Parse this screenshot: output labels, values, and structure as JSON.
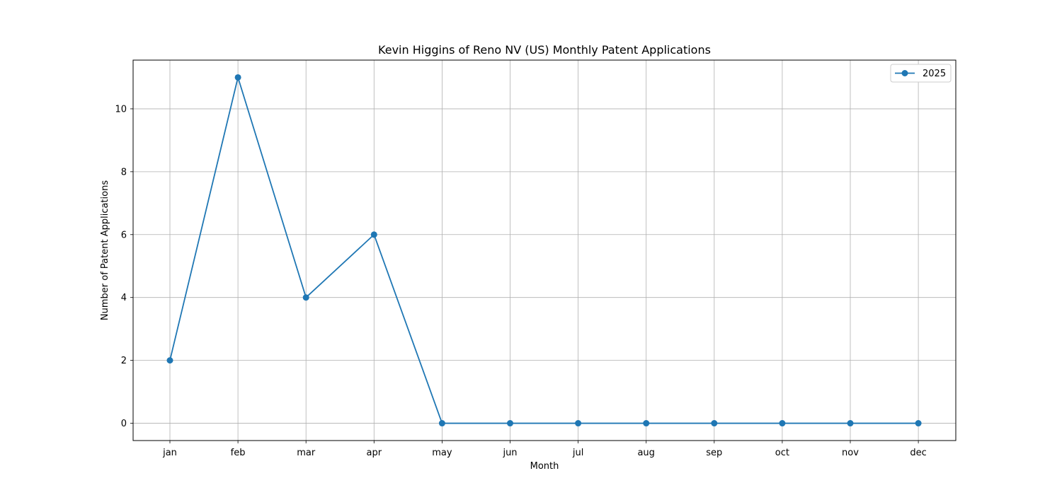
{
  "chart_data": {
    "type": "line",
    "title": "Kevin Higgins of Reno NV (US) Monthly Patent Applications",
    "xlabel": "Month",
    "ylabel": "Number of Patent Applications",
    "categories": [
      "jan",
      "feb",
      "mar",
      "apr",
      "may",
      "jun",
      "jul",
      "aug",
      "sep",
      "oct",
      "nov",
      "dec"
    ],
    "series": [
      {
        "name": "2025",
        "color": "#1f77b4",
        "marker": "circle",
        "values": [
          2,
          11,
          4,
          6,
          0,
          0,
          0,
          0,
          0,
          0,
          0,
          0
        ]
      }
    ],
    "ylim": [
      -0.55,
      11.55
    ],
    "yticks": [
      0,
      2,
      4,
      6,
      8,
      10
    ],
    "grid": true,
    "legend_position": "top-right"
  }
}
